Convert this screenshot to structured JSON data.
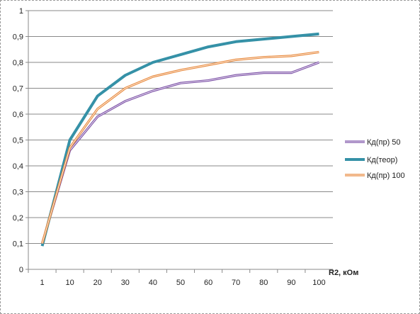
{
  "chart_data": {
    "type": "line",
    "title": "",
    "xlabel": "R2, кОм",
    "ylabel": "",
    "categories": [
      "1",
      "10",
      "20",
      "30",
      "40",
      "50",
      "60",
      "70",
      "80",
      "90",
      "100"
    ],
    "ylim": [
      0,
      1
    ],
    "yticks": [
      "0",
      "0,1",
      "0,2",
      "0,3",
      "0,4",
      "0,5",
      "0,6",
      "0,7",
      "0,8",
      "0,9",
      "1"
    ],
    "grid": true,
    "legend_position": "right",
    "series": [
      {
        "name": "Кд(пр) 50",
        "color": "#7b4fa6",
        "values": [
          0.1,
          0.46,
          0.59,
          0.65,
          0.69,
          0.72,
          0.73,
          0.75,
          0.76,
          0.76,
          0.8
        ]
      },
      {
        "name": "Кд(теор)",
        "color": "#3591a7",
        "values": [
          0.09,
          0.5,
          0.67,
          0.75,
          0.8,
          0.83,
          0.86,
          0.88,
          0.89,
          0.9,
          0.91
        ]
      },
      {
        "name": "Кд(пр) 100",
        "color": "#e8893c",
        "values": [
          0.1,
          0.47,
          0.62,
          0.7,
          0.745,
          0.77,
          0.79,
          0.81,
          0.82,
          0.825,
          0.84
        ]
      }
    ]
  }
}
